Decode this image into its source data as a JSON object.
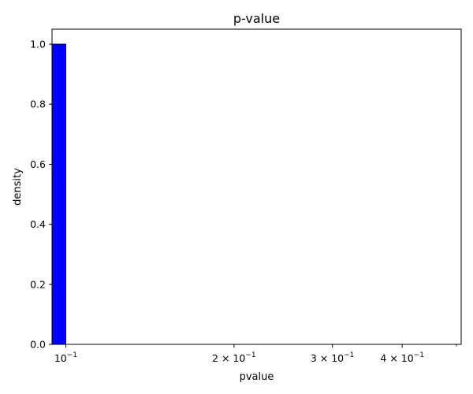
{
  "chart_data": {
    "type": "bar",
    "title": "p-value",
    "xlabel": "pvalue",
    "ylabel": "density",
    "x_scale": "log",
    "xlim": [
      0.0945,
      0.51
    ],
    "ylim": [
      0,
      1.05
    ],
    "grid": false,
    "bins": [
      {
        "x0": 0.0945,
        "x1": 0.1,
        "value": 1.0
      }
    ],
    "bar_color": "#0000ff",
    "edge_color": "#000000",
    "y_ticks": [
      {
        "value": 0.0,
        "label": "0.0"
      },
      {
        "value": 0.2,
        "label": "0.2"
      },
      {
        "value": 0.4,
        "label": "0.4"
      },
      {
        "value": 0.6,
        "label": "0.6"
      },
      {
        "value": 0.8,
        "label": "0.8"
      },
      {
        "value": 1.0,
        "label": "1.0"
      }
    ],
    "x_major_ticks": [
      {
        "value": 0.1,
        "base": "10",
        "exp": "−1",
        "coef": ""
      },
      {
        "value": 0.2,
        "base": "10",
        "exp": "−1",
        "coef": "2 × "
      },
      {
        "value": 0.3,
        "base": "10",
        "exp": "−1",
        "coef": "3 × "
      },
      {
        "value": 0.4,
        "base": "10",
        "exp": "−1",
        "coef": "4 × "
      }
    ],
    "x_minor_ticks": [
      0.5
    ]
  }
}
